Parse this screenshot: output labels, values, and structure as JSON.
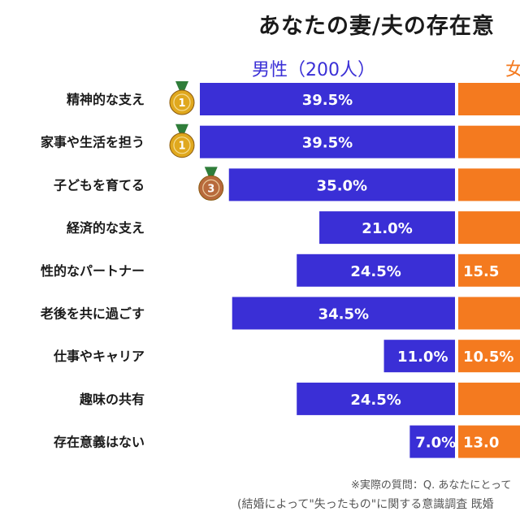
{
  "title": "あなたの妻/夫の存在意",
  "series_headers": {
    "male": "男性（200人）",
    "female": "女"
  },
  "chart_data": {
    "type": "bar",
    "categories": [
      "精神的な支え",
      "家事や生活を担う",
      "子どもを育てる",
      "経済的な支え",
      "性的なパートナー",
      "老後を共に過ごす",
      "仕事やキャリア",
      "趣味の共有",
      "存在意義はない"
    ],
    "series": [
      {
        "name": "男性（200人）",
        "values": [
          39.5,
          39.5,
          35.0,
          21.0,
          24.5,
          34.5,
          11.0,
          24.5,
          7.0
        ],
        "labels": [
          "39.5%",
          "39.5%",
          "35.0%",
          "21.0%",
          "24.5%",
          "34.5%",
          "11.0%",
          "24.5%",
          "7.0%"
        ]
      },
      {
        "name": "女",
        "values": [
          null,
          null,
          null,
          null,
          15.5,
          null,
          10.5,
          null,
          13.0
        ],
        "labels": [
          "",
          "",
          "",
          "",
          "15.5",
          "",
          "10.5%",
          "",
          "13.0"
        ]
      }
    ],
    "medals": [
      {
        "category": "精神的な支え",
        "kind": "gold",
        "text": "1"
      },
      {
        "category": "家事や生活を担う",
        "kind": "gold",
        "text": "1"
      },
      {
        "category": "子どもを育てる",
        "kind": "bronze",
        "text": "3"
      }
    ],
    "colors": {
      "male": "#3a2fd6",
      "female": "#f47a1f",
      "gold": "#e0a81e",
      "bronze": "#b86a3c",
      "ribbon": "#2f7d3a"
    }
  },
  "footnotes": {
    "note1": "※実際の質問：Q. あなたにとって",
    "note2": "(結婚によって\"失ったもの\"に関する意識調査 既婚"
  }
}
